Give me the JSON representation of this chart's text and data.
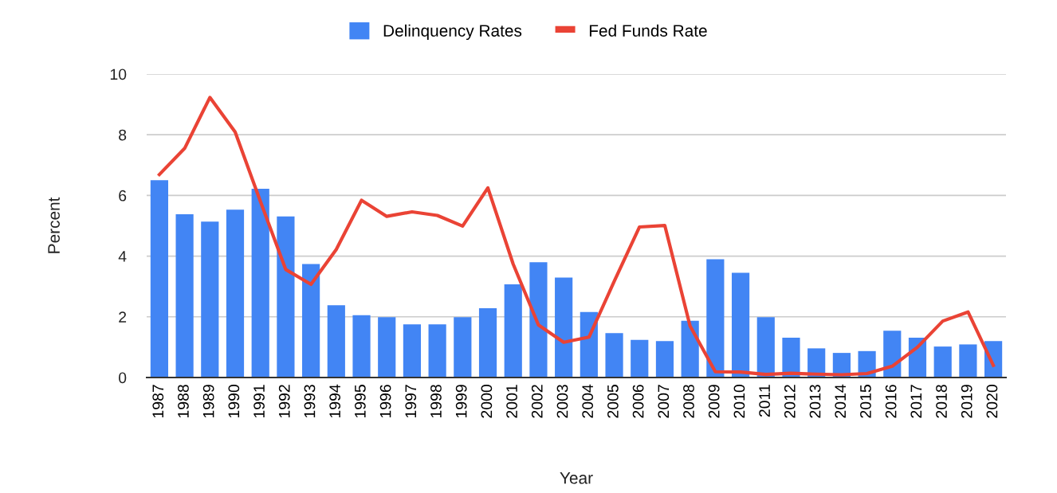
{
  "chart_data": {
    "type": "bar",
    "categories": [
      "1987",
      "1988",
      "1989",
      "1990",
      "1991",
      "1992",
      "1993",
      "1994",
      "1995",
      "1996",
      "1997",
      "1998",
      "1999",
      "2000",
      "2001",
      "2002",
      "2003",
      "2004",
      "2005",
      "2006",
      "2007",
      "2008",
      "2009",
      "2010",
      "2011",
      "2012",
      "2013",
      "2014",
      "2015",
      "2016",
      "2017",
      "2018",
      "2019",
      "2020"
    ],
    "series": [
      {
        "name": "Delinquency Rates",
        "color": "#4285f4",
        "values": [
          6.5,
          5.38,
          5.14,
          5.53,
          6.22,
          5.31,
          3.74,
          2.38,
          2.05,
          1.99,
          1.75,
          1.75,
          1.99,
          2.28,
          3.07,
          3.8,
          3.29,
          2.16,
          1.46,
          1.24,
          1.2,
          1.87,
          3.9,
          3.45,
          1.99,
          1.31,
          0.96,
          0.81,
          0.87,
          1.54,
          1.31,
          1.02,
          1.09,
          1.2
        ]
      },
      {
        "name": "Fed Funds Rate",
        "type": "line",
        "color": "#ea4335",
        "values": [
          6.69,
          7.55,
          9.23,
          8.09,
          5.8,
          3.56,
          3.07,
          4.22,
          5.84,
          5.31,
          5.46,
          5.34,
          4.99,
          6.25,
          3.74,
          1.73,
          1.16,
          1.33,
          3.17,
          4.96,
          5.01,
          1.7,
          0.19,
          0.18,
          0.1,
          0.14,
          0.11,
          0.09,
          0.13,
          0.37,
          1.0,
          1.86,
          2.16,
          0.4
        ]
      }
    ],
    "xlabel": "Year",
    "ylabel": "Percent",
    "ylim": [
      0,
      10
    ],
    "yticks": [
      0,
      2,
      4,
      6,
      8,
      10
    ],
    "grid": "y",
    "legend": "top"
  }
}
